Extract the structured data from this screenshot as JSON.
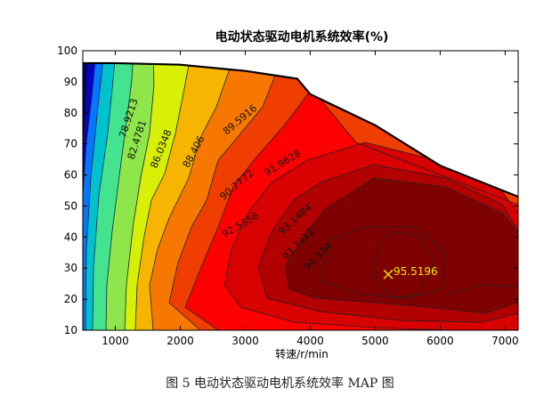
{
  "chart_data": {
    "type": "contour",
    "title": "电动状态驱动电机系统效率(%)",
    "xlabel": "转速/r/min",
    "ylabel": "",
    "xlim": [
      500,
      7200
    ],
    "ylim": [
      10,
      100
    ],
    "xticks": [
      1000,
      2000,
      3000,
      4000,
      5000,
      6000,
      7000
    ],
    "yticks": [
      10,
      20,
      30,
      40,
      50,
      60,
      70,
      80,
      90,
      100
    ],
    "grid": false,
    "boundary": {
      "x": [
        500,
        1000,
        2000,
        3000,
        3800,
        4000,
        5000,
        6000,
        7200
      ],
      "y": [
        96,
        96,
        95.5,
        93.5,
        91,
        86,
        76,
        63,
        53
      ]
    },
    "contour_labels": [
      {
        "text": "78.9213",
        "x": 1250,
        "y": 78
      },
      {
        "text": "82.4781",
        "x": 1380,
        "y": 71
      },
      {
        "text": "86.0348",
        "x": 1750,
        "y": 68
      },
      {
        "text": "88.406",
        "x": 2250,
        "y": 67
      },
      {
        "text": "89.5916",
        "x": 2950,
        "y": 77
      },
      {
        "text": "90.7772",
        "x": 2900,
        "y": 56
      },
      {
        "text": "91.9628",
        "x": 3600,
        "y": 63
      },
      {
        "text": "92.5556",
        "x": 2950,
        "y": 43
      },
      {
        "text": "93.1484",
        "x": 3800,
        "y": 45
      },
      {
        "text": "93.7412",
        "x": 3850,
        "y": 37
      },
      {
        "text": "94.334",
        "x": 4150,
        "y": 33
      }
    ],
    "max_point": {
      "label": "95.5196",
      "x": 5200,
      "y": 28
    },
    "colors": {
      "max_marker": "#f2e600",
      "background": "#ffffff",
      "band_colors": [
        "#00007f",
        "#0000d8",
        "#0078ff",
        "#00c2cd",
        "#43e38f",
        "#8ee64a",
        "#d8ef08",
        "#f7b400",
        "#f77800",
        "#f03d00",
        "#ff0000",
        "#d80000",
        "#b20000",
        "#7f0000"
      ]
    }
  },
  "caption": "图 5  电动状态驱动电机系统效率 MAP 图"
}
